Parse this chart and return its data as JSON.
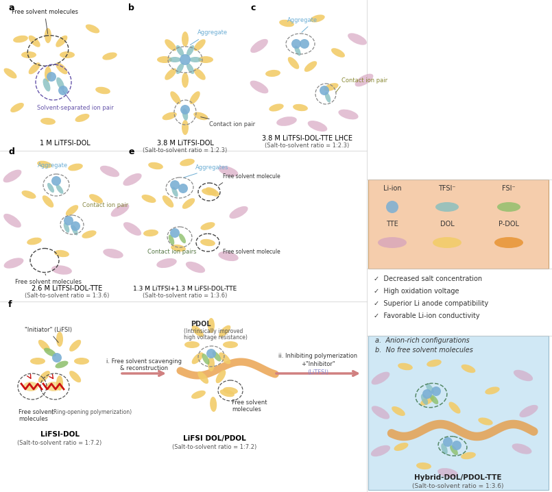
{
  "background_color": "#ffffff",
  "colors": {
    "yellow_solvent": "#F2CC6A",
    "blue_ion": "#7BAFD4",
    "teal_tfsi": "#85BEC0",
    "green_fsi": "#8CBF6A",
    "pink_tte": "#D4A0BE",
    "orange_pdol": "#E8973A",
    "light_blue_bg": "#D0E8F5",
    "peach_legend_bg": "#F5CDAC"
  },
  "checklist": [
    "✓  Decreased salt concentration",
    "✓  High oxidation voltage",
    "✓  Superior Li anode compatibility",
    "✓  Favorable Li-ion conductivity"
  ],
  "notes": [
    "a.  Anion-rich configurations",
    "b.  No free solvent molecules"
  ]
}
